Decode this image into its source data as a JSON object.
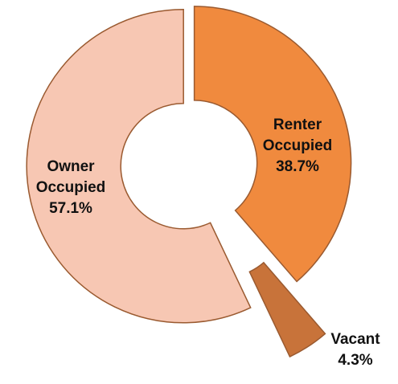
{
  "chart_data": {
    "type": "donut",
    "categories": [
      "Renter Occupied",
      "Vacant",
      "Owner Occupied"
    ],
    "values": [
      38.7,
      4.3,
      57.1
    ],
    "value_labels": [
      "38.7%",
      "4.3%",
      "57.1%"
    ],
    "colors": [
      "#f08a3e",
      "#c8733a",
      "#f7c7b3"
    ]
  }
}
